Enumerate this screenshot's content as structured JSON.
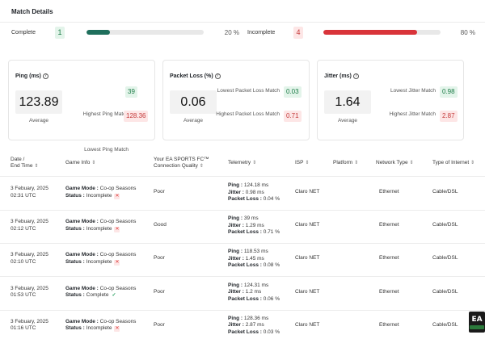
{
  "title": "Match Details",
  "summary": {
    "complete": {
      "label": "Complete",
      "count": "1",
      "percent_text": "20 %",
      "fraction": 0.2,
      "color": "#1f6f5c"
    },
    "incomplete": {
      "label": "Incomplete",
      "count": "4",
      "percent_text": "80 %",
      "fraction": 0.8,
      "color": "#d9343a"
    }
  },
  "stats": [
    {
      "title": "Ping (ms)",
      "average": "123.89",
      "average_label": "Average",
      "lowest_label": "Lowest Ping Match",
      "lowest": "39",
      "highest_label": "Highest Ping Match",
      "highest": "128.36"
    },
    {
      "title": "Packet Loss (%)",
      "average": "0.06",
      "average_label": "Average",
      "lowest_label": "Lowest Packet Loss Match",
      "lowest": "0.03",
      "highest_label": "Highest Packet Loss Match",
      "highest": "0.71"
    },
    {
      "title": "Jitter (ms)",
      "average": "1.64",
      "average_label": "Average",
      "lowest_label": "Lowest Jitter Match",
      "lowest": "0.98",
      "highest_label": "Highest Jitter Match",
      "highest": "2.87"
    }
  ],
  "table": {
    "headers": {
      "date_l1": "Date /",
      "date_l2": "End Time",
      "game_info": "Game Info",
      "quality_l1": "Your EA SPORTS FC™",
      "quality_l2": "Connection Quality",
      "telemetry": "Telemetry",
      "isp": "ISP",
      "platform": "Platform",
      "network": "Network Type",
      "internet": "Type of Internet"
    },
    "labels": {
      "game_mode": "Game Mode :",
      "status": "Status :",
      "ping": "Ping :",
      "jitter": "Jitter :",
      "packet_loss": "Packet Loss :"
    },
    "rows": [
      {
        "date": "3 Febuary, 2025",
        "time": "02:31 UTC",
        "mode": "Co-op Seasons",
        "status": "Incomplete",
        "status_ok": false,
        "quality": "Poor",
        "ping": "124.18 ms",
        "jitter": "0.98 ms",
        "loss": "0.04 %",
        "isp": "Claro NET",
        "platform": "",
        "network": "Ethernet",
        "internet": "Cable/DSL"
      },
      {
        "date": "3 Febuary, 2025",
        "time": "02:12 UTC",
        "mode": "Co-op Seasons",
        "status": "Incomplete",
        "status_ok": false,
        "quality": "Good",
        "ping": "39 ms",
        "jitter": "1.29 ms",
        "loss": "0.71 %",
        "isp": "Claro NET",
        "platform": "",
        "network": "Ethernet",
        "internet": "Cable/DSL"
      },
      {
        "date": "3 Febuary, 2025",
        "time": "02:10 UTC",
        "mode": "Co-op Seasons",
        "status": "Incomplete",
        "status_ok": false,
        "quality": "Poor",
        "ping": "118.53 ms",
        "jitter": "1.45 ms",
        "loss": "0.08 %",
        "isp": "Claro NET",
        "platform": "",
        "network": "Ethernet",
        "internet": "Cable/DSL"
      },
      {
        "date": "3 Febuary, 2025",
        "time": "01:53 UTC",
        "mode": "Co-op Seasons",
        "status": "Complete",
        "status_ok": true,
        "quality": "Poor",
        "ping": "124.31 ms",
        "jitter": "1.2 ms",
        "loss": "0.06 %",
        "isp": "Claro NET",
        "platform": "",
        "network": "Ethernet",
        "internet": "Cable/DSL"
      },
      {
        "date": "3 Febuary, 2025",
        "time": "01:16 UTC",
        "mode": "Co-op Seasons",
        "status": "Incomplete",
        "status_ok": false,
        "quality": "Poor",
        "ping": "128.36 ms",
        "jitter": "2.87 ms",
        "loss": "0.03 %",
        "isp": "Claro NET",
        "platform": "",
        "network": "Ethernet",
        "internet": "Cable/DSL"
      }
    ]
  },
  "badge": {
    "logo": "EA",
    "icon": "ea-sports-fc-badge"
  },
  "icons": {
    "info": "info-icon",
    "sort": "sort-arrows-icon",
    "incomplete": "x-icon",
    "complete": "check-icon"
  }
}
